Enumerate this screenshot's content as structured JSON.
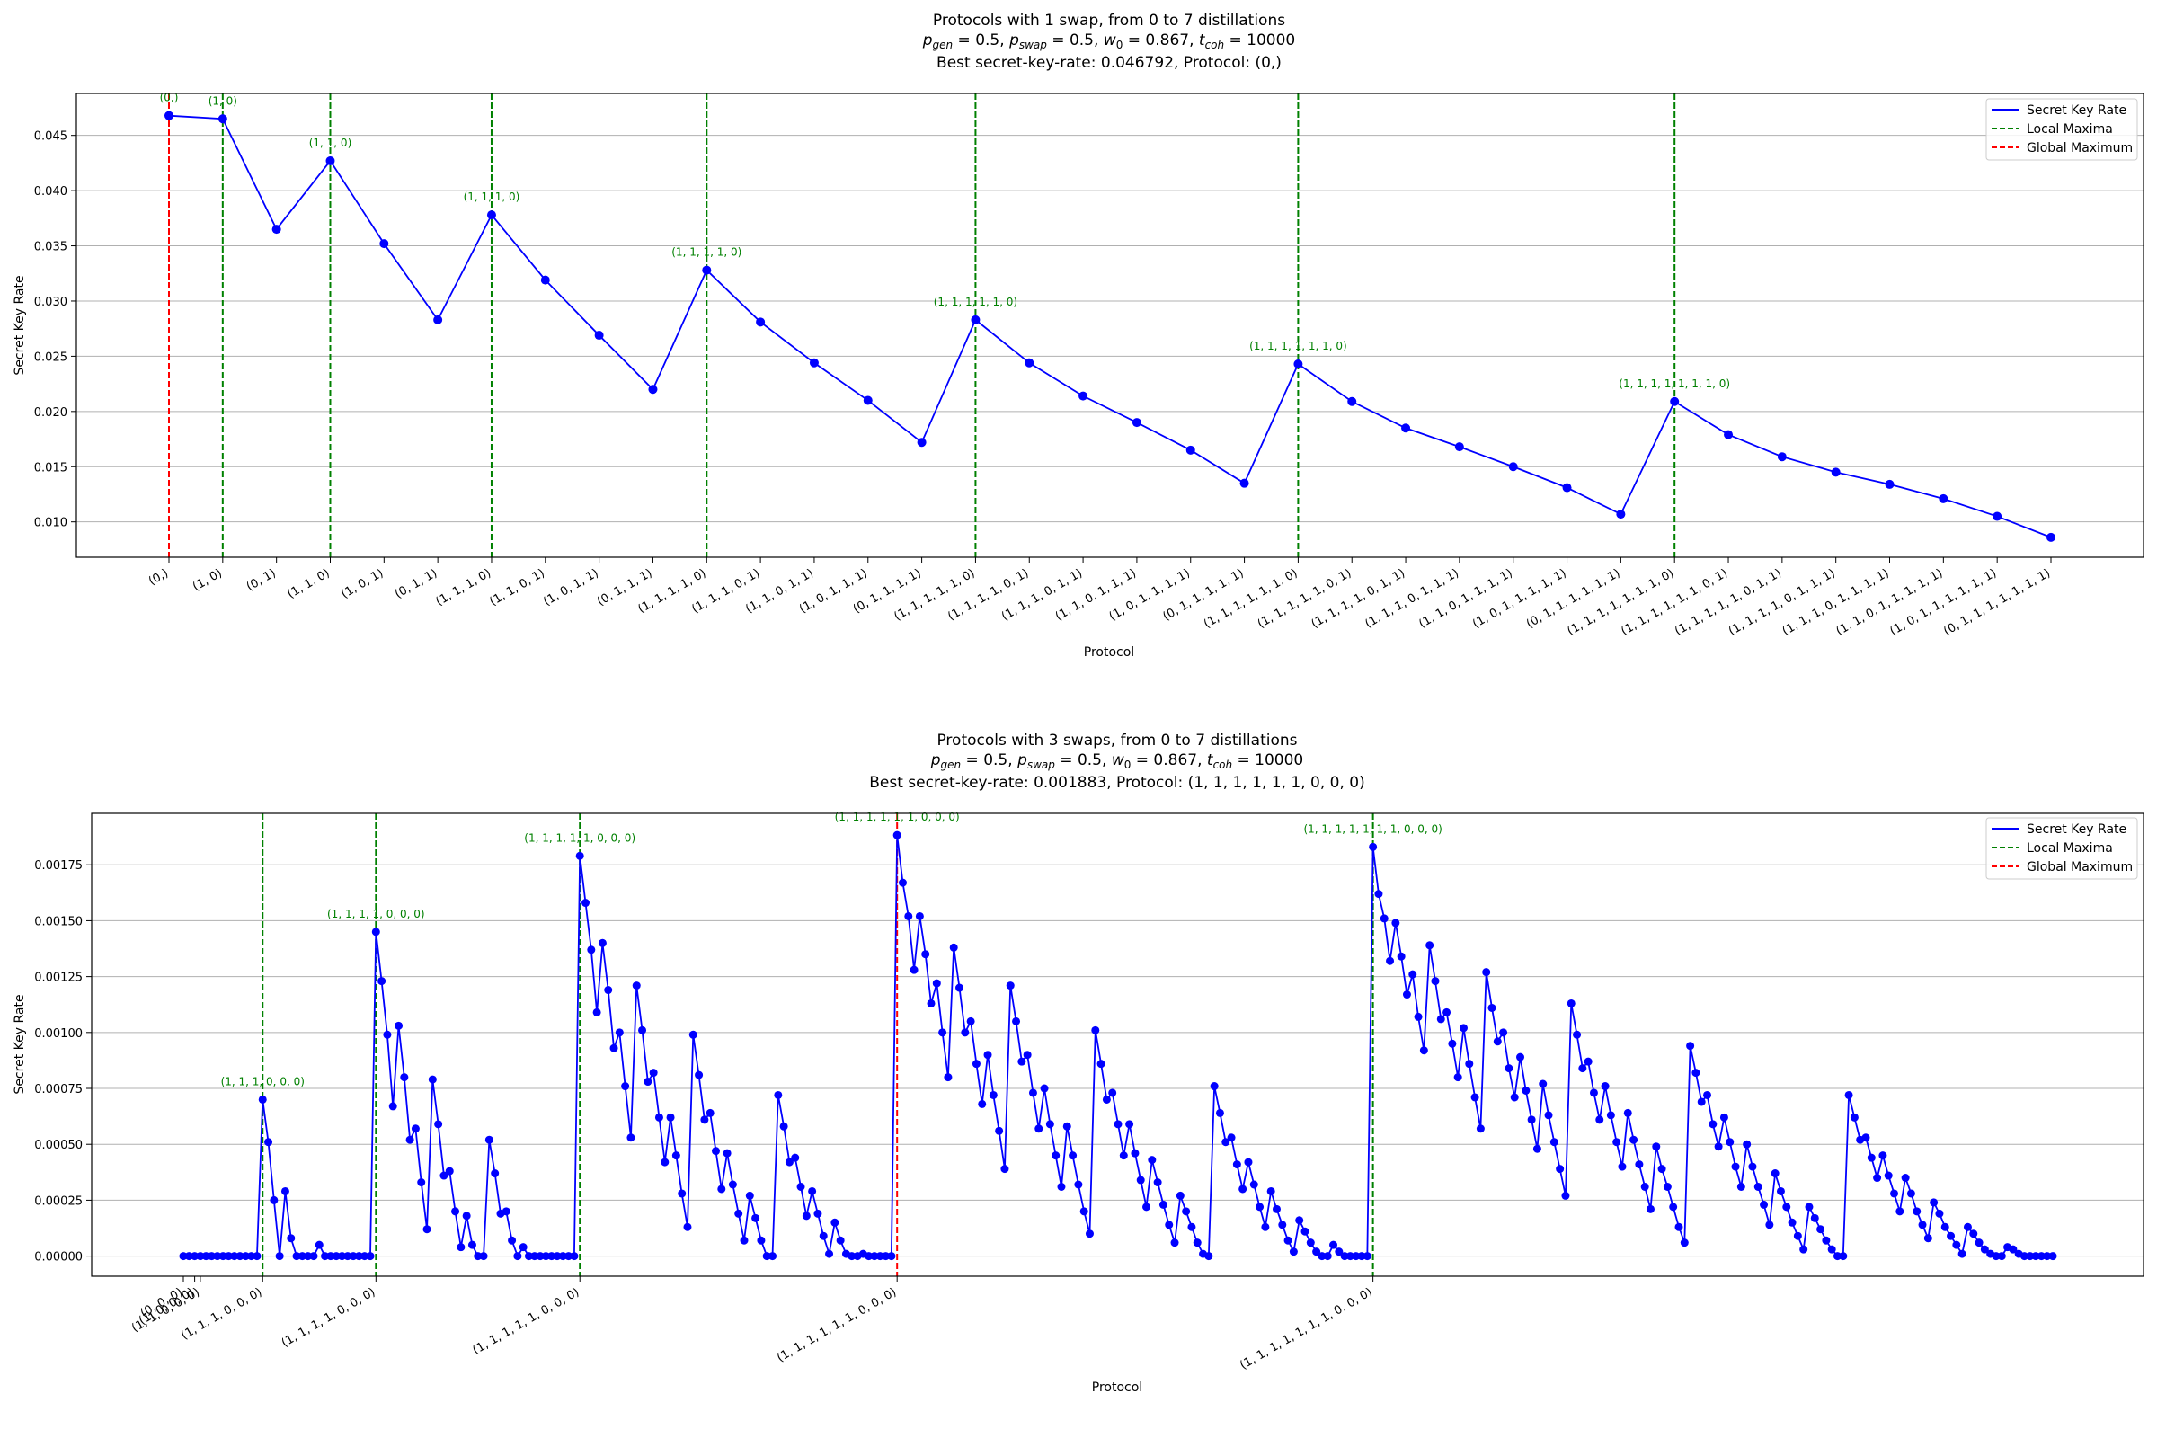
{
  "chart_data": [
    {
      "type": "line",
      "title": "Protocols with 1 swap, from 0 to 7 distillations",
      "subtitle": "p_gen = 0.5, p_swap = 0.5, w_0 = 0.867, t_coh = 10000",
      "best_line": "Best secret-key-rate: 0.046792, Protocol: (0,)",
      "xlabel": "Protocol",
      "ylabel": "Secret Key Rate",
      "ylim": [
        0.0068,
        0.0488
      ],
      "yticks": [
        "0.010",
        "0.015",
        "0.020",
        "0.025",
        "0.030",
        "0.035",
        "0.040",
        "0.045"
      ],
      "ytick_values": [
        0.01,
        0.015,
        0.02,
        0.025,
        0.03,
        0.035,
        0.04,
        0.045
      ],
      "grid": "horizontal",
      "legend_position": "top-right",
      "legend": [
        "Secret Key Rate",
        "Local Maxima",
        "Global Maximum"
      ],
      "colors": {
        "line": "#0000ff",
        "local": "#008000",
        "global": "#ff0000"
      },
      "categories": [
        "(0,)",
        "(1, 0)",
        "(0, 1)",
        "(1, 1, 0)",
        "(1, 0, 1)",
        "(0, 1, 1)",
        "(1, 1, 1, 0)",
        "(1, 1, 0, 1)",
        "(1, 0, 1, 1)",
        "(0, 1, 1, 1)",
        "(1, 1, 1, 1, 0)",
        "(1, 1, 1, 0, 1)",
        "(1, 1, 0, 1, 1)",
        "(1, 0, 1, 1, 1)",
        "(0, 1, 1, 1, 1)",
        "(1, 1, 1, 1, 1, 0)",
        "(1, 1, 1, 1, 0, 1)",
        "(1, 1, 1, 0, 1, 1)",
        "(1, 1, 0, 1, 1, 1)",
        "(1, 0, 1, 1, 1, 1)",
        "(0, 1, 1, 1, 1, 1)",
        "(1, 1, 1, 1, 1, 1, 0)",
        "(1, 1, 1, 1, 1, 0, 1)",
        "(1, 1, 1, 1, 0, 1, 1)",
        "(1, 1, 1, 0, 1, 1, 1)",
        "(1, 1, 0, 1, 1, 1, 1)",
        "(1, 0, 1, 1, 1, 1, 1)",
        "(0, 1, 1, 1, 1, 1, 1)",
        "(1, 1, 1, 1, 1, 1, 1, 0)",
        "(1, 1, 1, 1, 1, 1, 0, 1)",
        "(1, 1, 1, 1, 1, 0, 1, 1)",
        "(1, 1, 1, 1, 0, 1, 1, 1)",
        "(1, 1, 1, 0, 1, 1, 1, 1)",
        "(1, 1, 0, 1, 1, 1, 1, 1)",
        "(1, 0, 1, 1, 1, 1, 1, 1)",
        "(0, 1, 1, 1, 1, 1, 1, 1)"
      ],
      "values": [
        0.046792,
        0.0465,
        0.0365,
        0.0427,
        0.0352,
        0.0283,
        0.0378,
        0.0319,
        0.0269,
        0.022,
        0.0328,
        0.0281,
        0.0244,
        0.021,
        0.0172,
        0.0283,
        0.0244,
        0.0214,
        0.019,
        0.0165,
        0.0135,
        0.0243,
        0.0209,
        0.0185,
        0.0168,
        0.015,
        0.0131,
        0.0107,
        0.0209,
        0.0179,
        0.0159,
        0.0145,
        0.0134,
        0.0121,
        0.0105,
        0.0086
      ],
      "local_maxima_idx": [
        1,
        3,
        6,
        10,
        15,
        21,
        28
      ],
      "global_max_idx": 0,
      "annotations": [
        {
          "idx": 0,
          "text": "(0,)"
        },
        {
          "idx": 1,
          "text": "(1, 0)"
        },
        {
          "idx": 3,
          "text": "(1, 1, 0)"
        },
        {
          "idx": 6,
          "text": "(1, 1, 1, 0)"
        },
        {
          "idx": 10,
          "text": "(1, 1, 1, 1, 0)"
        },
        {
          "idx": 15,
          "text": "(1, 1, 1, 1, 1, 0)"
        },
        {
          "idx": 21,
          "text": "(1, 1, 1, 1, 1, 1, 0)"
        },
        {
          "idx": 28,
          "text": "(1, 1, 1, 1, 1, 1, 1, 0)"
        }
      ]
    },
    {
      "type": "line",
      "title": "Protocols with 3 swaps, from 0 to 7 distillations",
      "subtitle": "p_gen = 0.5, p_swap = 0.5, w_0 = 0.867, t_coh = 10000",
      "best_line": "Best secret-key-rate: 0.001883, Protocol: (1, 1, 1, 1, 1, 1, 0, 0, 0)",
      "xlabel": "Protocol",
      "ylabel": "Secret Key Rate",
      "ylim": [
        -9e-05,
        0.00198
      ],
      "yticks": [
        "0.00000",
        "0.00025",
        "0.00050",
        "0.00075",
        "0.00100",
        "0.00125",
        "0.00150",
        "0.00175"
      ],
      "ytick_values": [
        0,
        0.00025,
        0.0005,
        0.00075,
        0.001,
        0.00125,
        0.0015,
        0.00175
      ],
      "grid": "horizontal",
      "legend_position": "top-right",
      "legend": [
        "Secret Key Rate",
        "Local Maxima",
        "Global Maximum"
      ],
      "colors": {
        "line": "#0000ff",
        "local": "#008000",
        "global": "#ff0000"
      },
      "values": [
        0,
        0,
        0,
        0,
        0,
        0,
        0,
        0,
        0,
        0,
        0,
        0,
        0,
        0,
        0.0007,
        0.00051,
        0.00025,
        0,
        0.00029,
        8e-05,
        0,
        0,
        0,
        0,
        5e-05,
        0,
        0,
        0,
        0,
        0,
        0,
        0,
        0,
        0,
        0.00145,
        0.00123,
        0.00099,
        0.00067,
        0.00103,
        0.0008,
        0.00052,
        0.00057,
        0.00033,
        0.00012,
        0.00079,
        0.00059,
        0.00036,
        0.00038,
        0.0002,
        4e-05,
        0.00018,
        5e-05,
        0,
        0,
        0.00052,
        0.00037,
        0.00019,
        0.0002,
        7e-05,
        0,
        4e-05,
        0,
        0,
        0,
        0,
        0,
        0,
        0,
        0,
        0,
        0.00179,
        0.00158,
        0.00137,
        0.00109,
        0.0014,
        0.00119,
        0.00093,
        0.001,
        0.00076,
        0.00053,
        0.00121,
        0.00101,
        0.00078,
        0.00082,
        0.00062,
        0.00042,
        0.00062,
        0.00045,
        0.00028,
        0.00013,
        0.00099,
        0.00081,
        0.00061,
        0.00064,
        0.00047,
        0.0003,
        0.00046,
        0.00032,
        0.00019,
        7e-05,
        0.00027,
        0.00017,
        7e-05,
        0,
        0,
        0.00072,
        0.00058,
        0.00042,
        0.00044,
        0.00031,
        0.00018,
        0.00029,
        0.00019,
        9e-05,
        1e-05,
        0.00015,
        7e-05,
        1e-05,
        0,
        0,
        1e-05,
        0,
        0,
        0,
        0,
        0,
        0.001883,
        0.00167,
        0.00152,
        0.00128,
        0.00152,
        0.00135,
        0.00113,
        0.00122,
        0.001,
        0.0008,
        0.00138,
        0.0012,
        0.001,
        0.00105,
        0.00086,
        0.00068,
        0.0009,
        0.00072,
        0.00056,
        0.00039,
        0.00121,
        0.00105,
        0.00087,
        0.0009,
        0.00073,
        0.00057,
        0.00075,
        0.00059,
        0.00045,
        0.00031,
        0.00058,
        0.00045,
        0.00032,
        0.0002,
        0.0001,
        0.00101,
        0.00086,
        0.0007,
        0.00073,
        0.00059,
        0.00045,
        0.00059,
        0.00046,
        0.00034,
        0.00022,
        0.00043,
        0.00033,
        0.00023,
        0.00014,
        6e-05,
        0.00027,
        0.0002,
        0.00013,
        6e-05,
        1e-05,
        0,
        0.00076,
        0.00064,
        0.00051,
        0.00053,
        0.00041,
        0.0003,
        0.00042,
        0.00032,
        0.00022,
        0.00013,
        0.00029,
        0.00021,
        0.00014,
        7e-05,
        2e-05,
        0.00016,
        0.00011,
        6e-05,
        2e-05,
        0,
        0,
        5e-05,
        2e-05,
        0,
        0,
        0,
        0,
        0,
        0.00183,
        0.00162,
        0.00151,
        0.00132,
        0.00149,
        0.00134,
        0.00117,
        0.00126,
        0.00107,
        0.00092,
        0.00139,
        0.00123,
        0.00106,
        0.00109,
        0.00095,
        0.0008,
        0.00102,
        0.00086,
        0.00071,
        0.00057,
        0.00127,
        0.00111,
        0.00096,
        0.001,
        0.00084,
        0.00071,
        0.00089,
        0.00074,
        0.00061,
        0.00048,
        0.00077,
        0.00063,
        0.00051,
        0.00039,
        0.00027,
        0.00113,
        0.00099,
        0.00084,
        0.00087,
        0.00073,
        0.00061,
        0.00076,
        0.00063,
        0.00051,
        0.0004,
        0.00064,
        0.00052,
        0.00041,
        0.00031,
        0.00021,
        0.00049,
        0.00039,
        0.00031,
        0.00022,
        0.00013,
        6e-05,
        0.00094,
        0.00082,
        0.00069,
        0.00072,
        0.00059,
        0.00049,
        0.00062,
        0.00051,
        0.0004,
        0.00031,
        0.0005,
        0.0004,
        0.00031,
        0.00023,
        0.00014,
        0.00037,
        0.00029,
        0.00022,
        0.00015,
        9e-05,
        3e-05,
        0.00022,
        0.00017,
        0.00012,
        7e-05,
        3e-05,
        0,
        0,
        0.00072,
        0.00062,
        0.00052,
        0.00053,
        0.00044,
        0.00035,
        0.00045,
        0.00036,
        0.00028,
        0.0002,
        0.00035,
        0.00028,
        0.0002,
        0.00014,
        8e-05,
        0.00024,
        0.00019,
        0.00013,
        9e-05,
        5e-05,
        1e-05,
        0.00013,
        0.0001,
        6e-05,
        3e-05,
        1e-05,
        0,
        0,
        4e-05,
        3e-05,
        1e-05,
        0,
        0,
        0,
        0,
        0,
        0
      ],
      "tick_labels": [
        {
          "idx": 0,
          "text": "(0, 0, 0)"
        },
        {
          "idx": 2,
          "text": "(1, 0, 0, 0)"
        },
        {
          "idx": 3,
          "text": "(1, 1, 0, 0, 0)"
        },
        {
          "idx": 14,
          "text": "(1, 1, 1, 0, 0, 0)"
        },
        {
          "idx": 34,
          "text": "(1, 1, 1, 1, 0, 0, 0)"
        },
        {
          "idx": 70,
          "text": "(1, 1, 1, 1, 1, 0, 0, 0)"
        },
        {
          "idx": 126,
          "text": "(1, 1, 1, 1, 1, 1, 0, 0, 0)"
        },
        {
          "idx": 210,
          "text": "(1, 1, 1, 1, 1, 1, 1, 0, 0, 0)"
        }
      ],
      "local_maxima_idx": [
        14,
        34,
        70,
        210
      ],
      "global_max_idx": 126,
      "annotations": [
        {
          "idx": 14,
          "text": "(1, 1, 1, 0, 0, 0)"
        },
        {
          "idx": 34,
          "text": "(1, 1, 1, 1, 0, 0, 0)"
        },
        {
          "idx": 70,
          "text": "(1, 1, 1, 1, 1, 0, 0, 0)"
        },
        {
          "idx": 126,
          "text": "(1, 1, 1, 1, 1, 1, 0, 0, 0)"
        },
        {
          "idx": 210,
          "text": "(1, 1, 1, 1, 1, 1, 1, 0, 0, 0)"
        }
      ]
    }
  ]
}
